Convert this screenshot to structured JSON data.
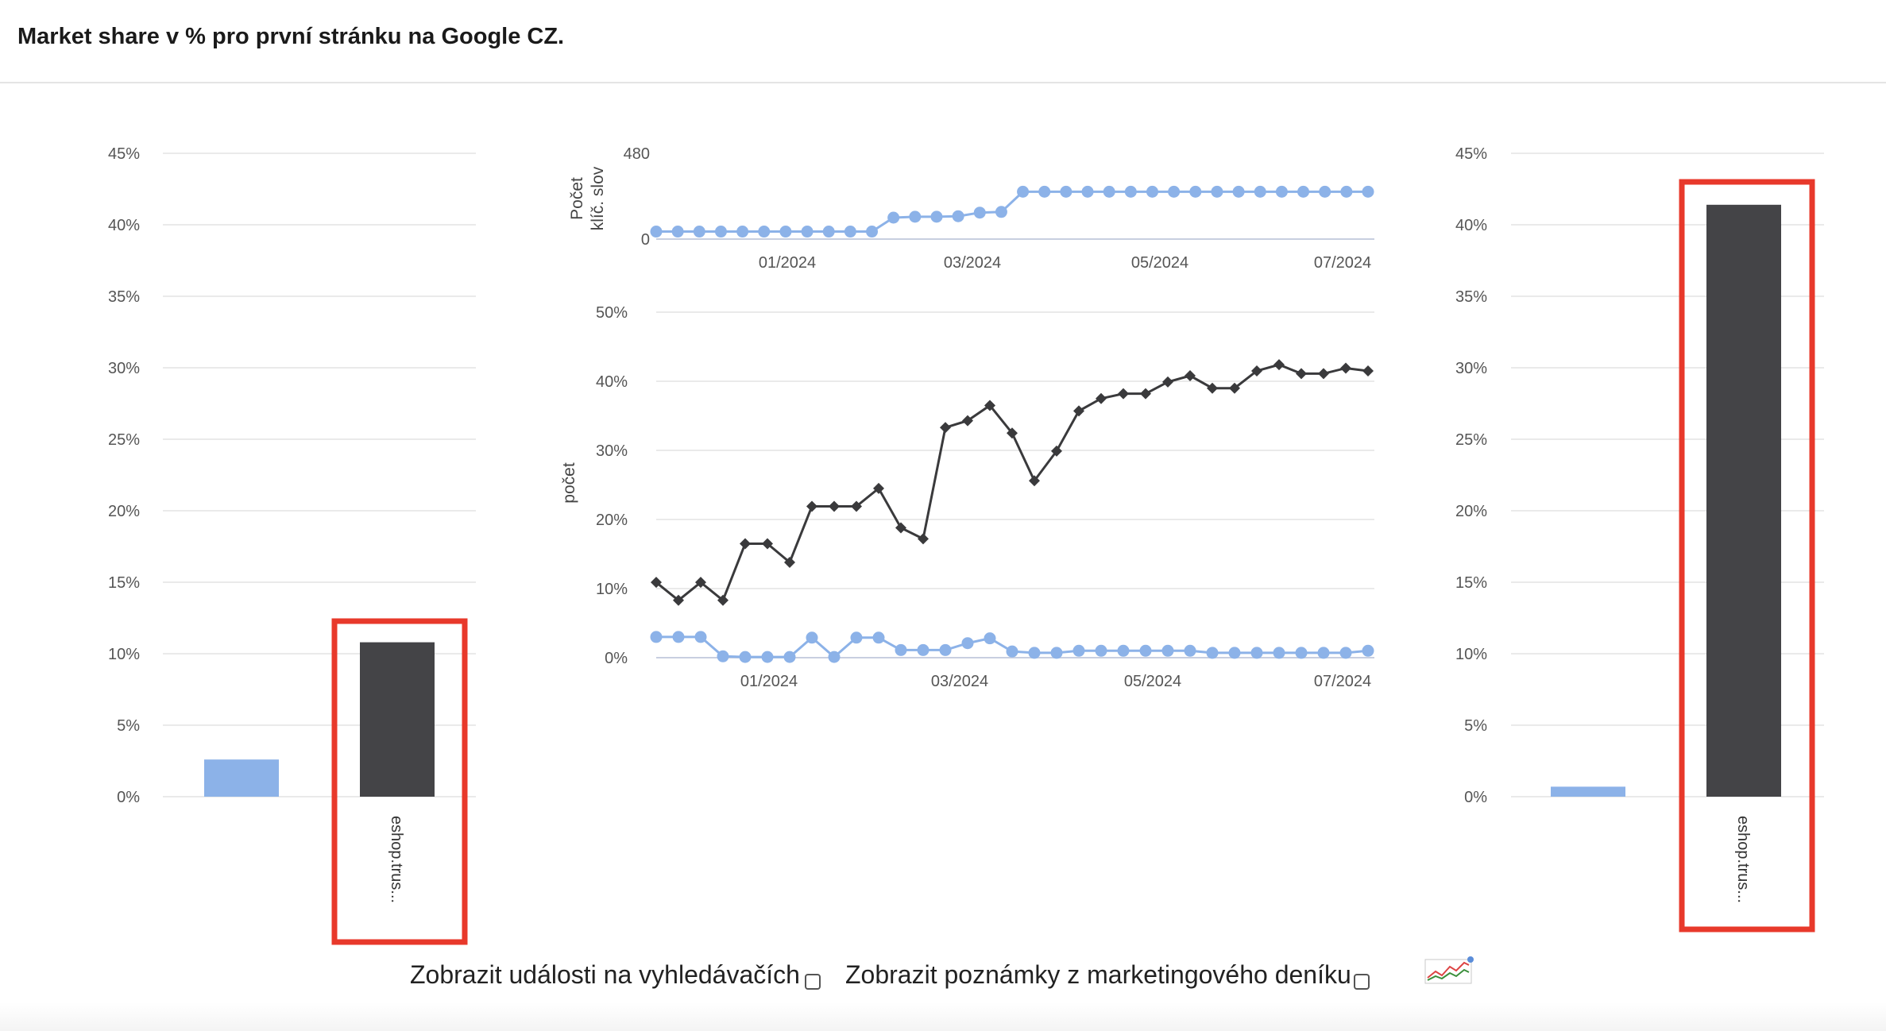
{
  "header": {
    "title": "Market share v % pro první stránku na Google CZ."
  },
  "colors": {
    "series_light": "#8cb2e8",
    "series_dark": "#444447",
    "line_light": "#8cb2e8",
    "line_dark": "#3a3a3c",
    "highlight": "#e8392b",
    "grid": "#e3e3e3"
  },
  "chart_data": [
    {
      "type": "bar",
      "categories": [
        "",
        "eshop.trus..."
      ],
      "values": [
        2.6,
        10.8
      ],
      "colors": [
        "#8cb2e8",
        "#444447"
      ],
      "ylim": [
        0,
        45
      ],
      "yticks": [
        "0%",
        "5%",
        "10%",
        "15%",
        "20%",
        "25%",
        "30%",
        "35%",
        "40%",
        "45%"
      ],
      "xlabel": "",
      "ylabel": ""
    },
    {
      "type": "line",
      "ylabel": "Počet\nklíč. slov",
      "ylabel_lines": [
        "Počet",
        "klíč. slov"
      ],
      "ylim": [
        0,
        480
      ],
      "yticks": [
        "0",
        "480"
      ],
      "xticks": [
        "01/2024",
        "03/2024",
        "05/2024",
        "07/2024"
      ],
      "series": [
        {
          "values": [
            42,
            42,
            42,
            42,
            42,
            42,
            42,
            42,
            42,
            42,
            42,
            120,
            125,
            125,
            128,
            148,
            152,
            265,
            265,
            265,
            265,
            265,
            265,
            265,
            265,
            265,
            265,
            265,
            265,
            265,
            265,
            265,
            265,
            265
          ]
        }
      ]
    },
    {
      "type": "line",
      "ylabel": "počet",
      "ylim": [
        0,
        50
      ],
      "yticks": [
        "0%",
        "10%",
        "20%",
        "30%",
        "40%",
        "50%"
      ],
      "xticks": [
        "01/2024",
        "03/2024",
        "05/2024",
        "07/2024"
      ],
      "series": [
        {
          "values": [
            10.9,
            8.3,
            10.9,
            8.3,
            16.5,
            16.5,
            13.8,
            21.9,
            21.9,
            21.9,
            24.5,
            18.8,
            17.2,
            33.3,
            34.3,
            36.5,
            32.5,
            25.6,
            29.9,
            35.7,
            37.5,
            38.2,
            38.2,
            39.9,
            40.8,
            39.0,
            39.0,
            41.5,
            42.4,
            41.1,
            41.1,
            41.9,
            41.5
          ]
        },
        {
          "values": [
            3.0,
            3.0,
            3.0,
            0.2,
            0.1,
            0.1,
            0.1,
            2.9,
            0.1,
            2.9,
            2.9,
            1.1,
            1.1,
            1.1,
            2.1,
            2.8,
            0.9,
            0.7,
            0.7,
            1.0,
            1.0,
            1.0,
            1.0,
            1.0,
            1.0,
            0.7,
            0.7,
            0.7,
            0.7,
            0.7,
            0.7,
            0.7,
            1.0
          ]
        }
      ]
    },
    {
      "type": "bar",
      "categories": [
        "",
        "eshop.trus..."
      ],
      "values": [
        0.7,
        41.4
      ],
      "colors": [
        "#8cb2e8",
        "#444447"
      ],
      "ylim": [
        0,
        45
      ],
      "yticks": [
        "0%",
        "5%",
        "10%",
        "15%",
        "20%",
        "25%",
        "30%",
        "35%",
        "40%",
        "45%"
      ],
      "xlabel": "",
      "ylabel": ""
    }
  ],
  "controls": {
    "search_events_label": "Zobrazit události na vyhledávačích",
    "marketing_notes_label": "Zobrazit poznámky z marketingového deníku",
    "chart_icon": "chart-trend-icon"
  }
}
